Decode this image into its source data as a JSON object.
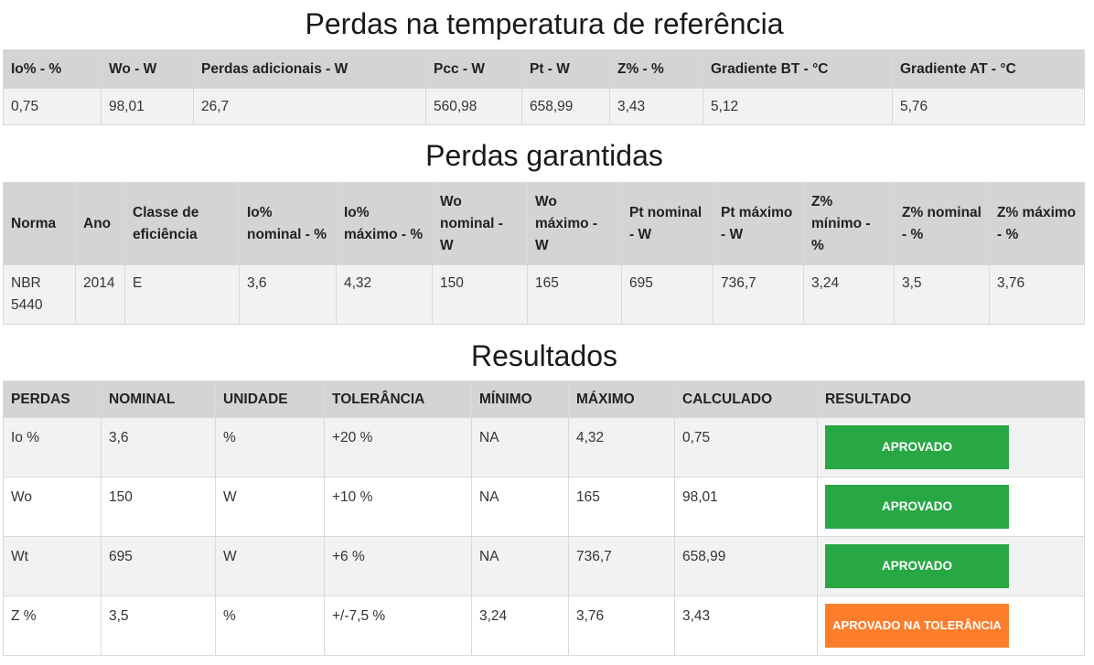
{
  "section1": {
    "title": "Perdas na temperatura de referência",
    "headers": [
      "Io% - %",
      "Wo - W",
      "Perdas adicionais - W",
      "Pcc - W",
      "Pt - W",
      "Z% - %",
      "Gradiente BT - °C",
      "Gradiente AT - °C"
    ],
    "row": [
      "0,75",
      "98,01",
      "26,7",
      "560,98",
      "658,99",
      "3,43",
      "5,12",
      "5,76"
    ]
  },
  "section2": {
    "title": "Perdas garantidas",
    "headers": [
      "Norma",
      "Ano",
      "Classe de eficiência",
      "Io% nominal - %",
      "Io% máximo - %",
      "Wo nominal - W",
      "Wo máximo - W",
      "Pt nominal - W",
      "Pt máximo - W",
      "Z% mínimo - %",
      "Z% nominal - %",
      "Z% máximo - %"
    ],
    "row": [
      "NBR 5440",
      "2014",
      "E",
      "3,6",
      "4,32",
      "150",
      "165",
      "695",
      "736,7",
      "3,24",
      "3,5",
      "3,76"
    ]
  },
  "section3": {
    "title": "Resultados",
    "headers": [
      "PERDAS",
      "NOMINAL",
      "UNIDADE",
      "TOLERÂNCIA",
      "MÍNIMO",
      "MÁXIMO",
      "CALCULADO",
      "RESULTADO"
    ],
    "rows": [
      {
        "cells": [
          "Io %",
          "3,6",
          "%",
          "+20 %",
          "NA",
          "4,32",
          "0,75"
        ],
        "result": "APROVADO",
        "status_color": "#28a745"
      },
      {
        "cells": [
          "Wo",
          "150",
          "W",
          "+10 %",
          "NA",
          "165",
          "98,01"
        ],
        "result": "APROVADO",
        "status_color": "#28a745"
      },
      {
        "cells": [
          "Wt",
          "695",
          "W",
          "+6 %",
          "NA",
          "736,7",
          "658,99"
        ],
        "result": "APROVADO",
        "status_color": "#28a745"
      },
      {
        "cells": [
          "Z %",
          "3,5",
          "%",
          "+/-7,5 %",
          "3,24",
          "3,76",
          "3,43"
        ],
        "result": "APROVADO NA TOLERÂNCIA",
        "status_color": "#fd7e2a"
      }
    ]
  }
}
